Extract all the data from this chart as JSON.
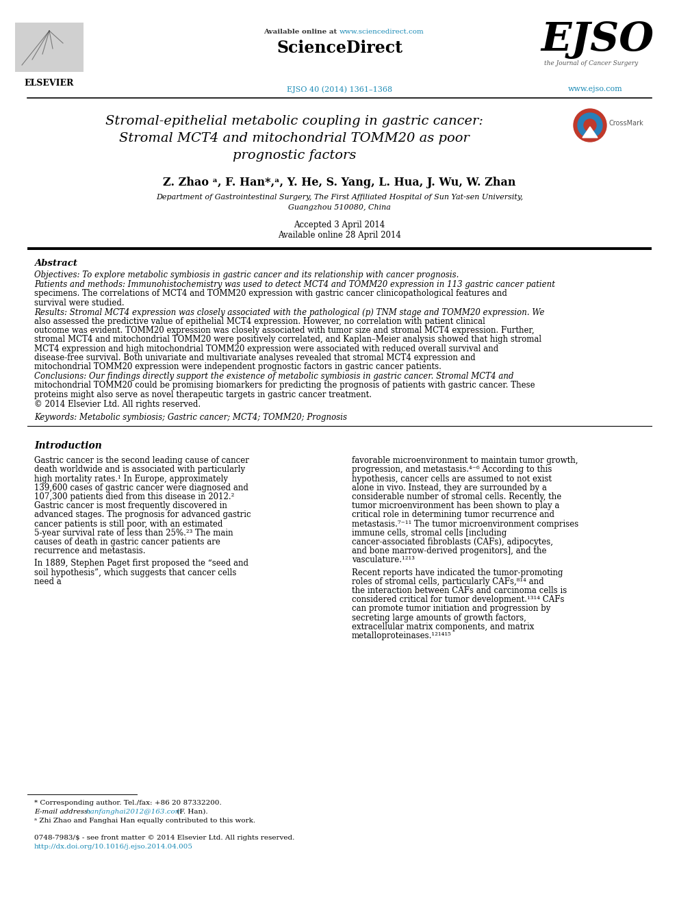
{
  "background_color": "#ffffff",
  "available_online_prefix": "Available online at ",
  "available_online_url": "www.sciencedirect.com",
  "sciencedirect_text": "ScienceDirect",
  "journal_ref": "EJSO 40 (2014) 1361–1368",
  "ejso_website": "www.ejso.com",
  "ejso_subtitle": "the Journal of Cancer Surgery",
  "elsevier_label": "ELSEVIER",
  "title_line1": "Stromal-epithelial metabolic coupling in gastric cancer:",
  "title_line2": "Stromal MCT4 and mitochondrial TOMM20 as poor",
  "title_line3": "prognostic factors",
  "crossmark_label": "CrossMark",
  "authors": "Z. Zhao ᵃ, F. Han*,ᵃ, Y. He, S. Yang, L. Hua, J. Wu, W. Zhan",
  "affiliation1": "Department of Gastrointestinal Surgery, The First Affiliated Hospital of Sun Yat-sen University,",
  "affiliation2": "Guangzhou 510080, China",
  "date1": "Accepted 3 April 2014",
  "date2": "Available online 28 April 2014",
  "abstract_label": "Abstract",
  "objectives_label": "Objectives",
  "objectives_text": ": To explore metabolic symbiosis in gastric cancer and its relationship with cancer prognosis.",
  "patients_label": "Patients and methods",
  "patients_text": ": Immunohistochemistry was used to detect MCT4 and TOMM20 expression in 113 gastric cancer patient specimens. The correlations of MCT4 and TOMM20 expression with gastric cancer clinicopathological features and survival were studied.",
  "results_label": "Results",
  "results_text": ": Stromal MCT4 expression was closely associated with the pathological (p) TNM stage and TOMM20 expression. We also assessed the predictive value of epithelial MCT4 expression. However, no correlation with patient clinical outcome was evident. TOMM20 expression was closely associated with tumor size and stromal MCT4 expression. Further, stromal MCT4 and mitochondrial TOMM20 were positively correlated, and Kaplan–Meier analysis showed that high stromal MCT4 expression and high mitochondrial TOMM20 expression were associated with reduced overall survival and disease-free survival. Both univariate and multivariate analyses revealed that stromal MCT4 expression and mitochondrial TOMM20 expression were independent prognostic factors in gastric cancer patients.",
  "conclusions_label": "Conclusions",
  "conclusions_text": ": Our findings directly support the existence of metabolic symbiosis in gastric cancer. Stromal MCT4 and mitochondrial TOMM20 could be promising biomarkers for predicting the prognosis of patients with gastric cancer. These proteins might also serve as novel therapeutic targets in gastric cancer treatment.",
  "copyright_text": "© 2014 Elsevier Ltd. All rights reserved.",
  "keywords_label": "Keywords",
  "keywords_text": ": Metabolic symbiosis; Gastric cancer; MCT4; TOMM20; Prognosis",
  "intro_label": "Introduction",
  "intro_col1_p1": "    Gastric cancer is the second leading cause of cancer death worldwide and is associated with particularly high mortality rates.¹ In Europe, approximately 139,600 cases of gastric cancer were diagnosed and 107,300 patients died from this disease in 2012.² Gastric cancer is most frequently discovered in advanced stages. The prognosis for advanced gastric cancer patients is still poor, with an estimated 5-year survival rate of less than 25%.²³ The main causes of death in gastric cancer patients are recurrence and metastasis.",
  "intro_col1_p2": "    In 1889, Stephen Paget first proposed the “seed and soil hypothesis”, which suggests that cancer cells need a",
  "intro_col2_p1": "favorable microenvironment to maintain tumor growth, progression, and metastasis.⁴⁻⁶ According to this hypothesis, cancer cells are assumed to not exist alone in vivo. Instead, they are surrounded by a considerable number of stromal cells. Recently, the tumor microenvironment has been shown to play a critical role in determining tumor recurrence and metastasis.⁷⁻¹¹ The tumor microenvironment comprises immune cells, stromal cells [including cancer-associated fibroblasts (CAFs), adipocytes, and bone marrow-derived progenitors], and the vasculature.¹²¹³",
  "intro_col2_p2": "Recent reports have indicated the tumor-promoting roles of stromal cells, particularly CAFs,⁸¹⁴ and the interaction between CAFs and carcinoma cells is considered critical for tumor development.¹³¹⁴ CAFs can promote tumor initiation and progression by secreting large amounts of growth factors, extracellular matrix components, and matrix metalloproteinases.¹²¹⁴¹⁵",
  "footer1": "* Corresponding author. Tel./fax: +86 20 87332200.",
  "footer2a": "E-mail address: ",
  "footer2b": "hanfanghai2012@163.com",
  "footer2c": " (F. Han).",
  "footer3": "ᵃ Zhi Zhao and Fanghai Han equally contributed to this work.",
  "footer_issn": "0748-7983/$ - see front matter © 2014 Elsevier Ltd. All rights reserved.",
  "footer_doi": "http://dx.doi.org/10.1016/j.ejso.2014.04.005",
  "url_color": "#1a8ab5",
  "black": "#000000",
  "gray": "#555555"
}
